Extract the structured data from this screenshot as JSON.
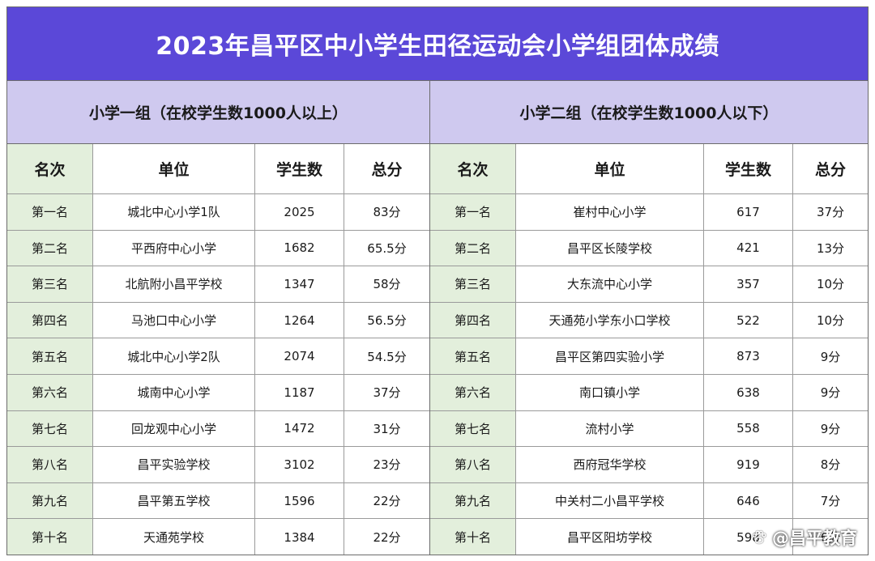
{
  "title": "2023年昌平区中小学生田径运动会小学组团体成绩",
  "groups": [
    {
      "title": "小学一组（在校学生数1000人以上）",
      "headers": [
        "名次",
        "单位",
        "学生数",
        "总分"
      ],
      "rows": [
        {
          "rank": "第一名",
          "school": "城北中心小学1队",
          "students": "2025",
          "score": "83分"
        },
        {
          "rank": "第二名",
          "school": "平西府中心小学",
          "students": "1682",
          "score": "65.5分"
        },
        {
          "rank": "第三名",
          "school": "北航附小昌平学校",
          "students": "1347",
          "score": "58分"
        },
        {
          "rank": "第四名",
          "school": "马池口中心小学",
          "students": "1264",
          "score": "56.5分"
        },
        {
          "rank": "第五名",
          "school": "城北中心小学2队",
          "students": "2074",
          "score": "54.5分"
        },
        {
          "rank": "第六名",
          "school": "城南中心小学",
          "students": "1187",
          "score": "37分"
        },
        {
          "rank": "第七名",
          "school": "回龙观中心小学",
          "students": "1472",
          "score": "31分"
        },
        {
          "rank": "第八名",
          "school": "昌平实验学校",
          "students": "3102",
          "score": "23分"
        },
        {
          "rank": "第九名",
          "school": "昌平第五学校",
          "students": "1596",
          "score": "22分"
        },
        {
          "rank": "第十名",
          "school": "天通苑学校",
          "students": "1384",
          "score": "22分"
        }
      ]
    },
    {
      "title": "小学二组（在校学生数1000人以下）",
      "headers": [
        "名次",
        "单位",
        "学生数",
        "总分"
      ],
      "rows": [
        {
          "rank": "第一名",
          "school": "崔村中心小学",
          "students": "617",
          "score": "37分"
        },
        {
          "rank": "第二名",
          "school": "昌平区长陵学校",
          "students": "421",
          "score": "13分"
        },
        {
          "rank": "第三名",
          "school": "大东流中心小学",
          "students": "357",
          "score": "10分"
        },
        {
          "rank": "第四名",
          "school": "天通苑小学东小口学校",
          "students": "522",
          "score": "10分"
        },
        {
          "rank": "第五名",
          "school": "昌平区第四实验小学",
          "students": "873",
          "score": "9分"
        },
        {
          "rank": "第六名",
          "school": "南口镇小学",
          "students": "638",
          "score": "9分"
        },
        {
          "rank": "第七名",
          "school": "流村小学",
          "students": "558",
          "score": "9分"
        },
        {
          "rank": "第八名",
          "school": "西府冠华学校",
          "students": "919",
          "score": "8分"
        },
        {
          "rank": "第九名",
          "school": "中关村二小昌平学校",
          "students": "646",
          "score": "7分"
        },
        {
          "rank": "第十名",
          "school": "昌平区阳坊学校",
          "students": "598",
          "score": "6分"
        }
      ]
    }
  ],
  "watermark": {
    "text": "@昌平教育",
    "icon": "paw-icon"
  },
  "colors": {
    "title_bg": "#5b48d8",
    "group_bg": "#cfc9ef",
    "rank_bg": "#e3efdc",
    "title_text": "#ffffff"
  }
}
